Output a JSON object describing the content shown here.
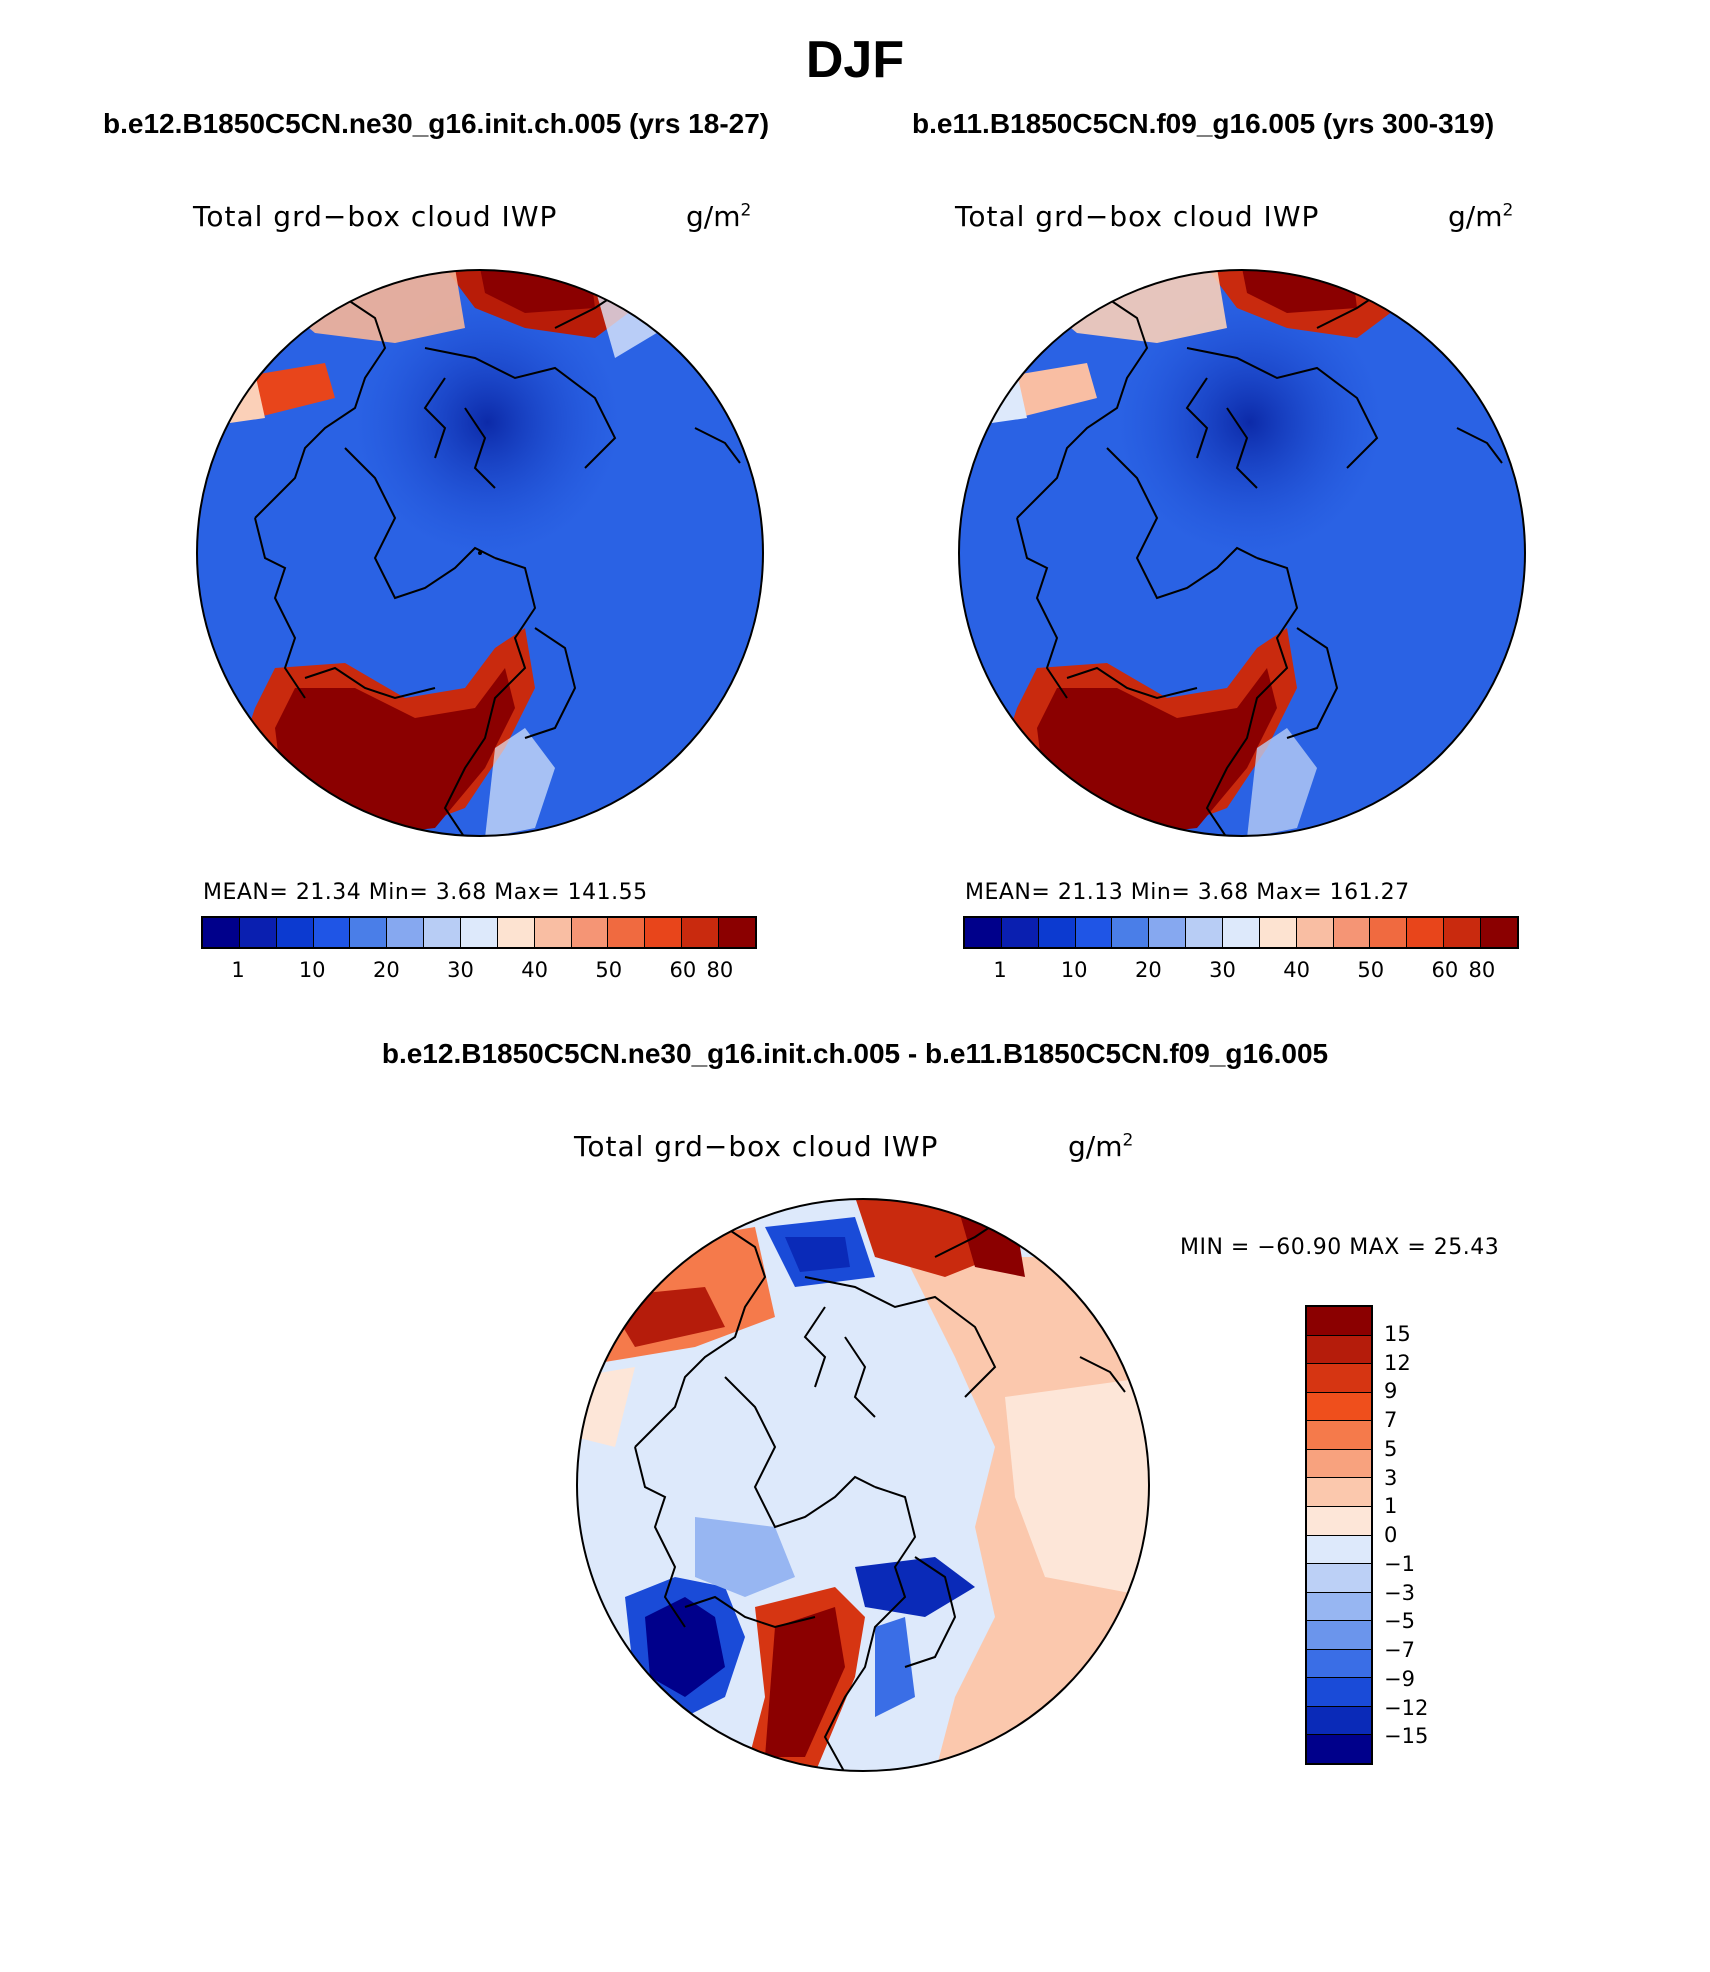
{
  "title": "DJF",
  "left_panel": {
    "case": "b.e12.B1850C5CN.ne30_g16.init.ch.005 (yrs 18-27)",
    "variable": "Total grd−box cloud IWP",
    "unit": "g/m",
    "unit_exp": "2",
    "stats": "MEAN=   21.34   Min=     3.68    Max=  141.55"
  },
  "right_panel": {
    "case": "b.e11.B1850C5CN.f09_g16.005 (yrs 300-319)",
    "variable": "Total grd−box cloud IWP",
    "unit": "g/m",
    "unit_exp": "2",
    "stats": "MEAN=   21.13   Min=     3.68    Max=  161.27"
  },
  "diff_panel": {
    "case": "b.e12.B1850C5CN.ne30_g16.init.ch.005 - b.e11.B1850C5CN.f09_g16.005",
    "variable": "Total grd−box cloud IWP",
    "unit": "g/m",
    "unit_exp": "2",
    "stats": "MIN = −60.90 MAX =   25.43"
  },
  "colorbar_abs": {
    "colors": [
      "#00008b",
      "#0a1fb0",
      "#0c3ad0",
      "#1f55e6",
      "#4a7ee8",
      "#86a8f0",
      "#b8cdf5",
      "#dde9fb",
      "#fde3d1",
      "#f9bea3",
      "#f59575",
      "#f06a40",
      "#e8451b",
      "#c92a0e",
      "#8b0000"
    ],
    "labels": [
      "1",
      "10",
      "20",
      "30",
      "40",
      "50",
      "60",
      "80"
    ]
  },
  "colorbar_diff": {
    "colors": [
      "#8b0000",
      "#b51c0b",
      "#d63512",
      "#ef4f1c",
      "#f57a4b",
      "#f8a27e",
      "#fbc8ad",
      "#fde6d8",
      "#dde9fb",
      "#bcd0f6",
      "#97b6f2",
      "#6b95ec",
      "#3a6ee6",
      "#1a4bd8",
      "#0a2ab8",
      "#00008b"
    ],
    "labels": [
      "15",
      "12",
      "9",
      "7",
      "5",
      "3",
      "1",
      "0",
      "−1",
      "−3",
      "−5",
      "−7",
      "−9",
      "−12",
      "−15"
    ]
  },
  "map_colors": {
    "ocean_low": "#2a5fe0",
    "arctic_low": "#1238b8",
    "atlantic_high": "#8b0000",
    "diff_neutral": "#dde9fb",
    "diff_warm": "#fbc8ad"
  }
}
